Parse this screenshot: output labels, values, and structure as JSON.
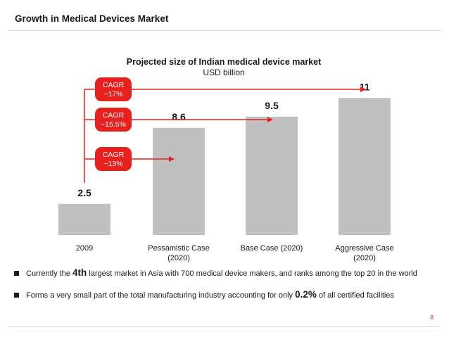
{
  "slide": {
    "title": "Growth in Medical Devices Market",
    "page_number": "8"
  },
  "chart_data": {
    "type": "bar",
    "title": "Projected size of Indian medical device market",
    "subtitle": "USD billion",
    "categories": [
      "2009",
      "Pessamistic Case\n(2020)",
      "Base Case (2020)",
      "Aggressive Case\n(2020)"
    ],
    "values": [
      2.5,
      8.6,
      9.5,
      11
    ],
    "value_labels": [
      "2.5",
      "8.6",
      "9.5",
      "11"
    ],
    "bar_color": "#c0c0c0",
    "annotations": [
      {
        "text": "CAGR\n~17%",
        "target_index": 3
      },
      {
        "text": "CAGR\n~15.5%",
        "target_index": 2
      },
      {
        "text": "CAGR\n~13%",
        "target_index": 1
      }
    ],
    "annotation_color": "#e8211e",
    "grid": false
  },
  "bullets": [
    {
      "before": "Currently the ",
      "bold": "4th",
      "after": " largest market in Asia with 700 medical device makers, and ranks among the top 20 in the world"
    },
    {
      "before": "Forms a very small part of the total manufacturing industry accounting for only ",
      "bold": "0.2%",
      "after": " of all certified facilities"
    }
  ]
}
